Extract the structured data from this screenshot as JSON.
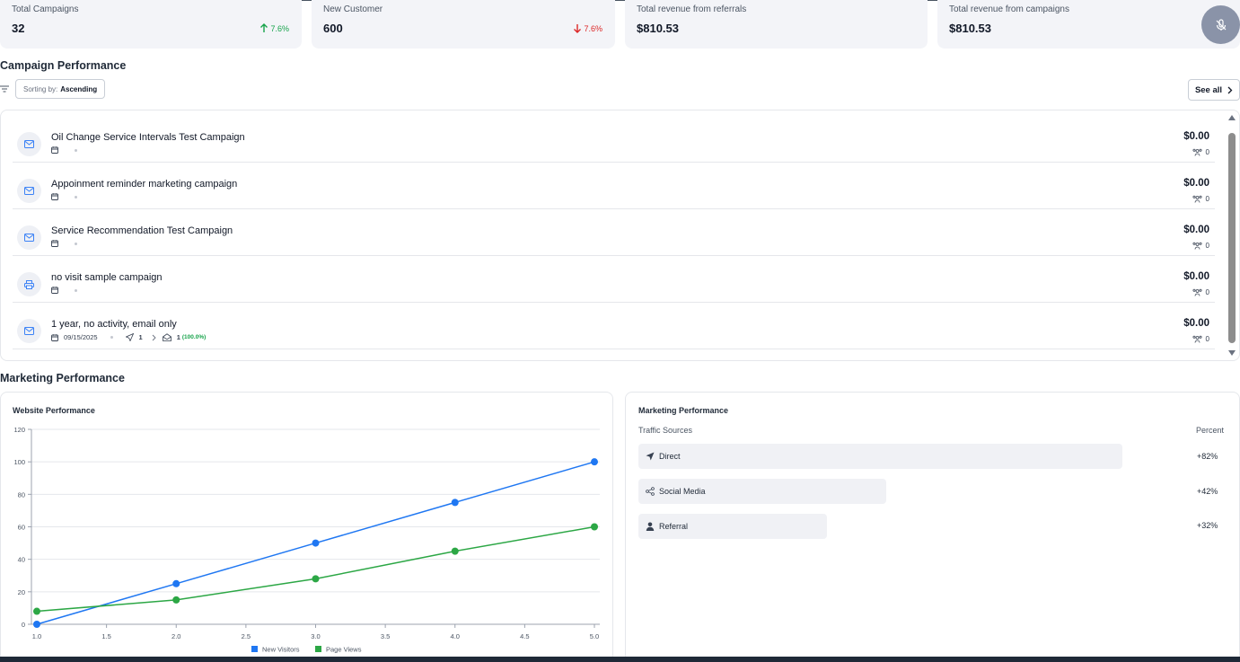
{
  "stats": [
    {
      "label": "Total Campaigns",
      "value": "32",
      "change": "7.6%",
      "direction": "up"
    },
    {
      "label": "New Customer",
      "value": "600",
      "change": "7.6%",
      "direction": "down"
    },
    {
      "label": "Total revenue from referrals",
      "value": "$810.53"
    },
    {
      "label": "Total revenue from campaigns",
      "value": "$810.53"
    }
  ],
  "campaign_section": {
    "title": "Campaign Performance",
    "sort_prefix": "Sorting by:",
    "sort_value": "Ascending",
    "see_all": "See all"
  },
  "campaigns": [
    {
      "title": "Oil Change Service Intervals Test Campaign",
      "amount": "$0.00",
      "count": "0",
      "icon": "mail-icon"
    },
    {
      "title": "Appoinment reminder marketing campaign",
      "amount": "$0.00",
      "count": "0",
      "icon": "mail-icon"
    },
    {
      "title": "Service Recommendation Test Campaign",
      "amount": "$0.00",
      "count": "0",
      "icon": "mail-icon"
    },
    {
      "title": "no visit sample campaign",
      "amount": "$0.00",
      "count": "0",
      "icon": "print-icon"
    },
    {
      "title": "1 year, no activity, email only",
      "amount": "$0.00",
      "count": "0",
      "icon": "mail-icon",
      "date": "09/15/2025",
      "sent": "1",
      "opened": "1",
      "opened_pct": "(100.0%)"
    }
  ],
  "marketing_section": {
    "title": "Marketing Performance"
  },
  "website_chart_title": "Website Performance",
  "chart_data": {
    "type": "line",
    "title": "Website Performance",
    "xlabel": "",
    "ylabel": "",
    "x_ticks": [
      "1.0",
      "1.5",
      "2.0",
      "2.5",
      "3.0",
      "3.5",
      "4.0",
      "4.5",
      "5.0"
    ],
    "y_ticks": [
      "0",
      "20",
      "40",
      "60",
      "80",
      "100",
      "120"
    ],
    "xlim": [
      1.0,
      5.0
    ],
    "ylim": [
      0,
      120
    ],
    "grid": true,
    "legend_position": "bottom",
    "series": [
      {
        "name": "New Visitors",
        "color": "#1f77f2",
        "x": [
          1,
          2,
          3,
          4,
          5
        ],
        "values": [
          0,
          25,
          50,
          75,
          100
        ]
      },
      {
        "name": "Page Views",
        "color": "#2ca745",
        "x": [
          1,
          2,
          3,
          4,
          5
        ],
        "values": [
          8,
          15,
          28,
          45,
          60
        ]
      }
    ]
  },
  "traffic": {
    "title": "Marketing Performance",
    "col_source": "Traffic Sources",
    "col_percent": "Percent",
    "rows": [
      {
        "label": "Direct",
        "percent": "+82%",
        "icon": "navigation-arrow-icon"
      },
      {
        "label": "Social Media",
        "percent": "+42%",
        "icon": "share-icon"
      },
      {
        "label": "Referral",
        "percent": "+32%",
        "icon": "user-icon"
      }
    ]
  }
}
